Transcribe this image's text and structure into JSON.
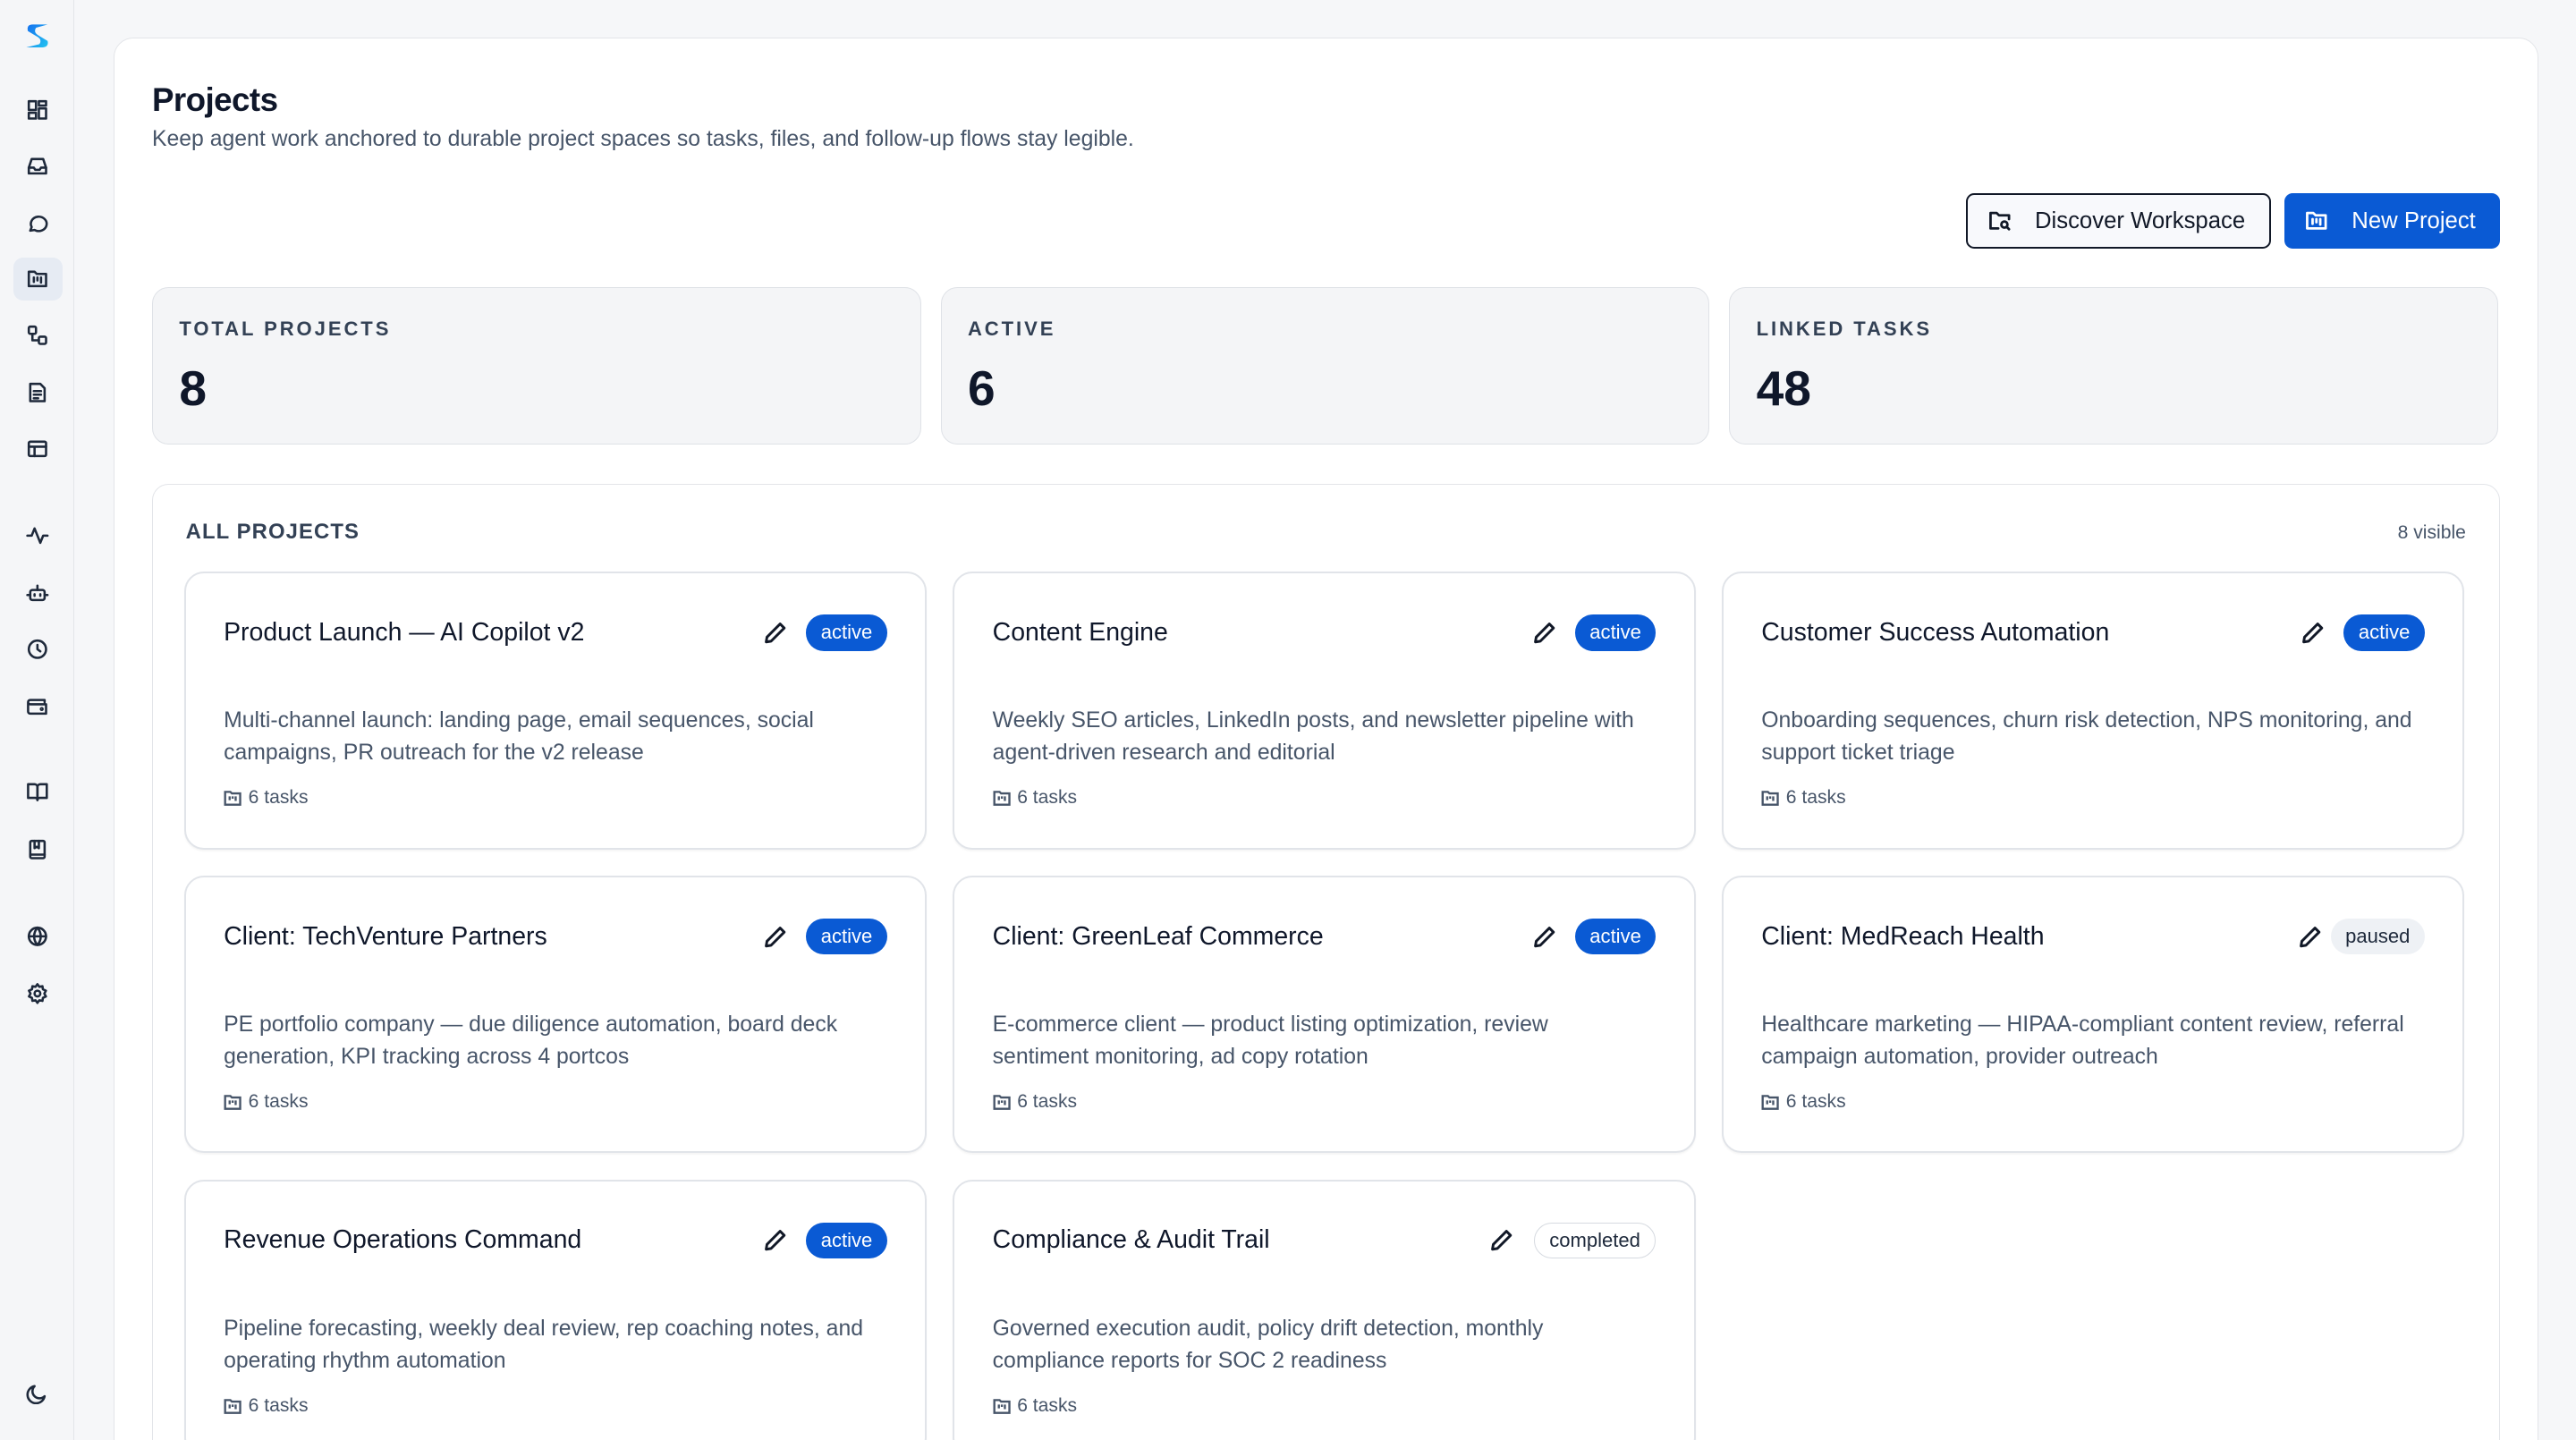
{
  "sidebar": {
    "logo": "S",
    "items": [
      {
        "icon": "dashboard-icon"
      },
      {
        "icon": "inbox-icon"
      },
      {
        "icon": "chat-icon"
      },
      {
        "icon": "projects-folder-icon",
        "active": true
      },
      {
        "icon": "workflow-icon"
      },
      {
        "icon": "document-icon"
      },
      {
        "icon": "table-icon"
      },
      {
        "icon": "activity-icon"
      },
      {
        "icon": "bot-icon"
      },
      {
        "icon": "clock-icon"
      },
      {
        "icon": "wallet-icon"
      },
      {
        "icon": "book-open-icon"
      },
      {
        "icon": "bookmark-book-icon"
      },
      {
        "icon": "globe-icon"
      },
      {
        "icon": "settings-gear-icon"
      }
    ],
    "theme_icon": "moon-icon"
  },
  "header": {
    "title": "Projects",
    "subtitle": "Keep agent work anchored to durable project spaces so tasks, files, and follow-up flows stay legible.",
    "discover_label": "Discover Workspace",
    "new_project_label": "New Project"
  },
  "stats": [
    {
      "label": "TOTAL PROJECTS",
      "value": "8"
    },
    {
      "label": "ACTIVE",
      "value": "6"
    },
    {
      "label": "LINKED TASKS",
      "value": "48"
    }
  ],
  "colors": {
    "accent": "#0a5ad4"
  },
  "projects_section": {
    "title": "ALL PROJECTS",
    "count": "8 visible",
    "projects": [
      {
        "name": "Product Launch — AI Copilot v2",
        "status": "active",
        "description": "Multi-channel launch: landing page, email sequences, social campaigns, PR outreach for the v2 release",
        "tasks": "6 tasks"
      },
      {
        "name": "Content Engine",
        "status": "active",
        "description": "Weekly SEO articles, LinkedIn posts, and newsletter pipeline with agent-driven research and editorial",
        "tasks": "6 tasks"
      },
      {
        "name": "Customer Success Automation",
        "status": "active",
        "description": "Onboarding sequences, churn risk detection, NPS monitoring, and support ticket triage",
        "tasks": "6 tasks"
      },
      {
        "name": "Client: TechVenture Partners",
        "status": "active",
        "description": "PE portfolio company — due diligence automation, board deck generation, KPI tracking across 4 portcos",
        "tasks": "6 tasks"
      },
      {
        "name": "Client: GreenLeaf Commerce",
        "status": "active",
        "description": "E-commerce client — product listing optimization, review sentiment monitoring, ad copy rotation",
        "tasks": "6 tasks"
      },
      {
        "name": "Client: MedReach Health",
        "status": "paused",
        "description": "Healthcare marketing — HIPAA-compliant content review, referral campaign automation, provider outreach",
        "tasks": "6 tasks"
      },
      {
        "name": "Revenue Operations Command",
        "status": "active",
        "description": "Pipeline forecasting, weekly deal review, rep coaching notes, and operating rhythm automation",
        "tasks": "6 tasks"
      },
      {
        "name": "Compliance & Audit Trail",
        "status": "completed",
        "description": "Governed execution audit, policy drift detection, monthly compliance reports for SOC 2 readiness",
        "tasks": "6 tasks"
      }
    ]
  }
}
